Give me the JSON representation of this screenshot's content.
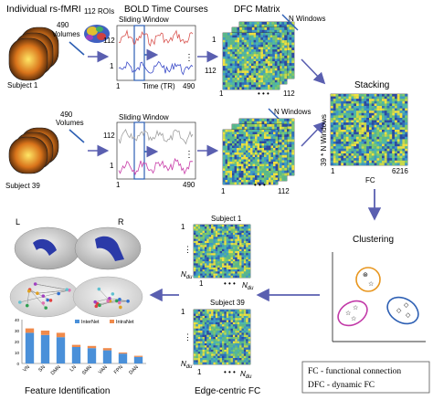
{
  "fmri": {
    "title": "Individual rs-fMRI",
    "volumes_label_top": "490",
    "volumes_word_top": "Volumes",
    "volumes_label_bottom": "490",
    "volumes_word_bottom": "Volumes",
    "subject_top": "Subject 1",
    "subject_bottom": "Subject 39",
    "rois_label": "112 ROIs"
  },
  "bold": {
    "title": "BOLD Time Courses",
    "sliding_top": "Sliding Window",
    "sliding_bottom": "Sliding Window",
    "y_top_top": "112",
    "y_bot_top": "1",
    "y_top_bottom": "112",
    "y_bot_bottom": "1",
    "x_start": "1",
    "x_label": "Time (TR)",
    "x_end": "490",
    "x_start_bottom": "1",
    "x_end_bottom": "490"
  },
  "dfc": {
    "title": "DFC Matrix",
    "n_windows_top": "N Windows",
    "n_windows_bottom": "N Windows",
    "tick_start_top": "1",
    "tick_end_top": "112",
    "tick_start_bottom": "1",
    "tick_end_bottom": "112",
    "left_tick_top": "112",
    "left_tick_mid": "1"
  },
  "stacking": {
    "title": "Stacking",
    "y_axis": "39 * N Windows",
    "x_start": "1",
    "x_label": "FC",
    "x_end": "6216"
  },
  "clustering": {
    "title": "Clustering"
  },
  "edge": {
    "title": "Edge-centric FC",
    "subject_top": "Subject 1",
    "subject_bottom": "Subject 39",
    "n_label": "N",
    "n_sub": "du",
    "tick_one": "1"
  },
  "feature": {
    "title": "Feature Identification",
    "left_hemi": "L",
    "right_hemi": "R"
  },
  "legend_box": {
    "line1": "FC - functional connection",
    "line2": "DFC - dynamic FC"
  },
  "colors": {
    "arrow": "#5a5fb0",
    "internet": "#4a90d9",
    "intranet": "#f08a4b",
    "cluster_orange": "#e8961e",
    "cluster_magenta": "#c23aa8",
    "cluster_blue": "#2d5fb3",
    "bold_top": "#d9534f",
    "bold_bottom": "#3b4bc8",
    "bold_gray": "#a0a0a0",
    "bold_pink": "#c83ca8"
  },
  "chart_data": {
    "type": "bar",
    "categories": [
      "VN",
      "SN",
      "DMN",
      "LN",
      "SMN",
      "VAN",
      "FPN",
      "DAN"
    ],
    "series": [
      {
        "name": "InterNet",
        "values": [
          28,
          26,
          24,
          15,
          14,
          12,
          9,
          6
        ]
      },
      {
        "name": "IntraNet",
        "values": [
          4,
          4,
          4,
          2,
          2,
          2,
          1,
          1
        ]
      }
    ],
    "ylim": [
      0,
      40
    ],
    "yticks": [
      "0",
      "10",
      "20",
      "30",
      "40"
    ]
  }
}
